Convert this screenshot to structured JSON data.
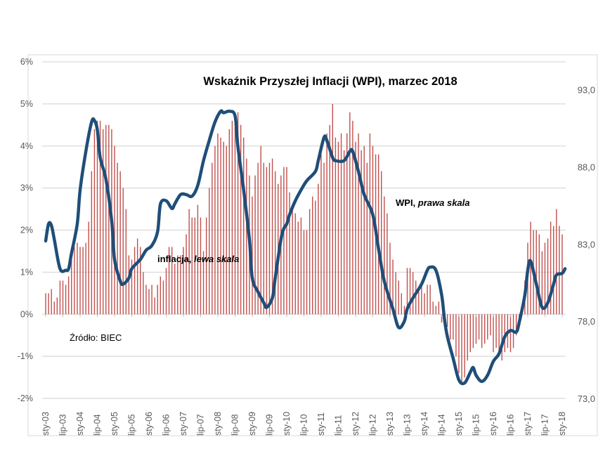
{
  "chart_data": {
    "type": "bar+line",
    "title": "Wskaźnik Przyszłej Inflacji (WPI), marzec 2018",
    "source_note": "Źródło: BIEC",
    "annotations": {
      "inflation_label": "inflacja, ",
      "inflation_label_italic": "lewa skala",
      "wpi_label": "WPI, ",
      "wpi_label_italic": "prawa skala"
    },
    "left_axis": {
      "ylim": [
        -2,
        6
      ],
      "ticks": [
        "6%",
        "5%",
        "4%",
        "3%",
        "2%",
        "1%",
        "0%",
        "-1%",
        "-2%"
      ]
    },
    "right_axis": {
      "ylim": [
        73,
        94.8
      ],
      "ticks": [
        "93,0",
        "88,0",
        "83,0",
        "78,0",
        "73,0"
      ]
    },
    "x_ticks": [
      "sty-03",
      "lip-03",
      "sty-04",
      "lip-04",
      "sty-05",
      "lip-05",
      "sty-06",
      "lip-06",
      "sty-07",
      "lip-07",
      "sty-08",
      "lip-08",
      "sty-09",
      "lip-09",
      "sty-10",
      "lip-10",
      "sty-11",
      "lip-11",
      "sty-12",
      "lip-12",
      "sty-13",
      "lip-13",
      "sty-14",
      "lip-14",
      "sty-15",
      "lip-15",
      "sty-16",
      "lip-16",
      "sty-17",
      "lip-17",
      "sty-18"
    ],
    "grid": true,
    "colors": {
      "inflation": "#c0504d",
      "wpi": "#1f4e79",
      "grid": "#d9d9d9"
    },
    "inflation": {
      "axis": "left",
      "start": "2003-01",
      "frequency": "monthly",
      "unit": "%",
      "values": [
        0.5,
        0.5,
        0.6,
        0.3,
        0.4,
        0.8,
        0.8,
        0.7,
        0.9,
        1.3,
        1.6,
        1.7,
        1.6,
        1.6,
        1.7,
        2.2,
        3.4,
        4.4,
        4.6,
        4.6,
        4.4,
        4.5,
        4.5,
        4.4,
        4.0,
        3.6,
        3.4,
        3.0,
        2.5,
        1.4,
        1.3,
        1.6,
        1.8,
        1.6,
        1.0,
        0.7,
        0.6,
        0.7,
        0.4,
        0.7,
        0.9,
        0.8,
        1.1,
        1.6,
        1.6,
        1.2,
        1.4,
        1.4,
        1.6,
        1.9,
        2.5,
        2.3,
        2.3,
        2.6,
        2.3,
        1.5,
        2.3,
        3.0,
        3.6,
        4.0,
        4.3,
        4.2,
        4.1,
        4.0,
        4.4,
        4.6,
        4.8,
        4.8,
        4.5,
        4.2,
        3.7,
        3.3,
        2.8,
        3.3,
        3.6,
        4.0,
        3.6,
        3.5,
        3.6,
        3.7,
        3.4,
        3.1,
        3.3,
        3.5,
        3.5,
        2.9,
        2.6,
        2.4,
        2.2,
        2.3,
        2.0,
        2.0,
        2.5,
        2.8,
        2.7,
        3.1,
        3.8,
        3.6,
        4.3,
        4.5,
        5.0,
        4.2,
        4.1,
        4.3,
        3.9,
        4.3,
        4.8,
        4.6,
        4.1,
        4.3,
        3.9,
        4.0,
        3.6,
        4.3,
        4.0,
        3.8,
        3.8,
        3.4,
        2.8,
        2.4,
        1.7,
        1.3,
        1.0,
        0.8,
        0.5,
        0.2,
        1.1,
        1.1,
        1.0,
        0.8,
        0.6,
        0.7,
        0.5,
        0.7,
        0.7,
        0.3,
        0.2,
        0.3,
        -0.2,
        -0.3,
        -0.3,
        -0.6,
        -0.6,
        -1.0,
        -1.4,
        -1.6,
        -1.5,
        -1.1,
        -0.9,
        -0.8,
        -0.7,
        -0.6,
        -0.8,
        -0.7,
        -0.6,
        -0.5,
        -0.9,
        -0.8,
        -0.9,
        -1.1,
        -0.9,
        -0.8,
        -0.9,
        -0.8,
        -0.5,
        -0.2,
        0.0,
        0.8,
        1.7,
        2.2,
        2.0,
        2.0,
        1.9,
        1.5,
        1.7,
        1.8,
        2.2,
        2.1,
        2.5,
        2.1,
        1.9
      ]
    },
    "wpi": {
      "axis": "right",
      "points": [
        [
          "2003-01",
          83.2
        ],
        [
          "2003-02",
          84.3
        ],
        [
          "2003-03",
          84.2
        ],
        [
          "2003-04",
          83.3
        ],
        [
          "2003-06",
          81.4
        ],
        [
          "2003-08",
          81.3
        ],
        [
          "2003-09",
          81.4
        ],
        [
          "2003-10",
          82.4
        ],
        [
          "2003-12",
          84.3
        ],
        [
          "2004-01",
          86.5
        ],
        [
          "2004-03",
          89.0
        ],
        [
          "2004-05",
          90.9
        ],
        [
          "2004-06",
          91.0
        ],
        [
          "2004-07",
          90.4
        ],
        [
          "2004-08",
          88.6
        ],
        [
          "2004-10",
          87.2
        ],
        [
          "2004-12",
          84.5
        ],
        [
          "2005-01",
          82.0
        ],
        [
          "2005-03",
          80.6
        ],
        [
          "2005-04",
          80.4
        ],
        [
          "2005-06",
          80.8
        ],
        [
          "2005-07",
          81.4
        ],
        [
          "2005-10",
          82.0
        ],
        [
          "2005-12",
          82.6
        ],
        [
          "2006-02",
          82.9
        ],
        [
          "2006-04",
          83.8
        ],
        [
          "2006-05",
          85.6
        ],
        [
          "2006-07",
          85.8
        ],
        [
          "2006-09",
          85.3
        ],
        [
          "2006-10",
          85.6
        ],
        [
          "2006-12",
          86.2
        ],
        [
          "2007-02",
          86.2
        ],
        [
          "2007-04",
          86.1
        ],
        [
          "2007-06",
          86.8
        ],
        [
          "2007-08",
          88.4
        ],
        [
          "2007-10",
          89.7
        ],
        [
          "2007-12",
          90.9
        ],
        [
          "2008-02",
          91.6
        ],
        [
          "2008-03",
          91.5
        ],
        [
          "2008-05",
          91.6
        ],
        [
          "2008-07",
          91.3
        ],
        [
          "2008-08",
          89.3
        ],
        [
          "2008-10",
          86.5
        ],
        [
          "2008-12",
          83.3
        ],
        [
          "2009-01",
          80.8
        ],
        [
          "2009-03",
          79.9
        ],
        [
          "2009-05",
          79.2
        ],
        [
          "2009-06",
          78.9
        ],
        [
          "2009-08",
          79.5
        ],
        [
          "2009-09",
          80.8
        ],
        [
          "2009-11",
          83.3
        ],
        [
          "2009-12",
          84.0
        ],
        [
          "2010-01",
          84.3
        ],
        [
          "2010-02",
          84.9
        ],
        [
          "2010-04",
          85.8
        ],
        [
          "2010-06",
          86.5
        ],
        [
          "2010-08",
          87.1
        ],
        [
          "2010-11",
          87.7
        ],
        [
          "2010-12",
          88.4
        ],
        [
          "2011-02",
          89.9
        ],
        [
          "2011-03",
          89.7
        ],
        [
          "2011-05",
          88.6
        ],
        [
          "2011-06",
          88.4
        ],
        [
          "2011-09",
          88.4
        ],
        [
          "2011-11",
          89.0
        ],
        [
          "2011-12",
          89.0
        ],
        [
          "2012-02",
          87.7
        ],
        [
          "2012-04",
          86.2
        ],
        [
          "2012-07",
          84.9
        ],
        [
          "2012-09",
          82.7
        ],
        [
          "2012-11",
          80.6
        ],
        [
          "2013-02",
          78.8
        ],
        [
          "2013-04",
          77.6
        ],
        [
          "2013-06",
          78.0
        ],
        [
          "2013-07",
          78.8
        ],
        [
          "2013-09",
          79.5
        ],
        [
          "2013-12",
          80.4
        ],
        [
          "2014-02",
          81.3
        ],
        [
          "2014-03",
          81.5
        ],
        [
          "2014-05",
          81.3
        ],
        [
          "2014-07",
          79.7
        ],
        [
          "2014-08",
          78.1
        ],
        [
          "2014-09",
          77.0
        ],
        [
          "2014-11",
          75.6
        ],
        [
          "2015-01",
          74.2
        ],
        [
          "2015-03",
          74.0
        ],
        [
          "2015-05",
          74.7
        ],
        [
          "2015-06",
          75.0
        ],
        [
          "2015-07",
          74.5
        ],
        [
          "2015-09",
          74.1
        ],
        [
          "2015-11",
          74.5
        ],
        [
          "2016-01",
          75.4
        ],
        [
          "2016-03",
          75.9
        ],
        [
          "2016-05",
          77.0
        ],
        [
          "2016-07",
          77.4
        ],
        [
          "2016-09",
          77.3
        ],
        [
          "2016-10",
          77.9
        ],
        [
          "2016-12",
          79.7
        ],
        [
          "2017-01",
          81.3
        ],
        [
          "2017-02",
          81.9
        ],
        [
          "2017-04",
          80.4
        ],
        [
          "2017-06",
          78.9
        ],
        [
          "2017-08",
          79.2
        ],
        [
          "2017-10",
          80.4
        ],
        [
          "2017-11",
          81.0
        ],
        [
          "2018-01",
          81.1
        ],
        [
          "2018-02",
          81.4
        ]
      ]
    }
  }
}
